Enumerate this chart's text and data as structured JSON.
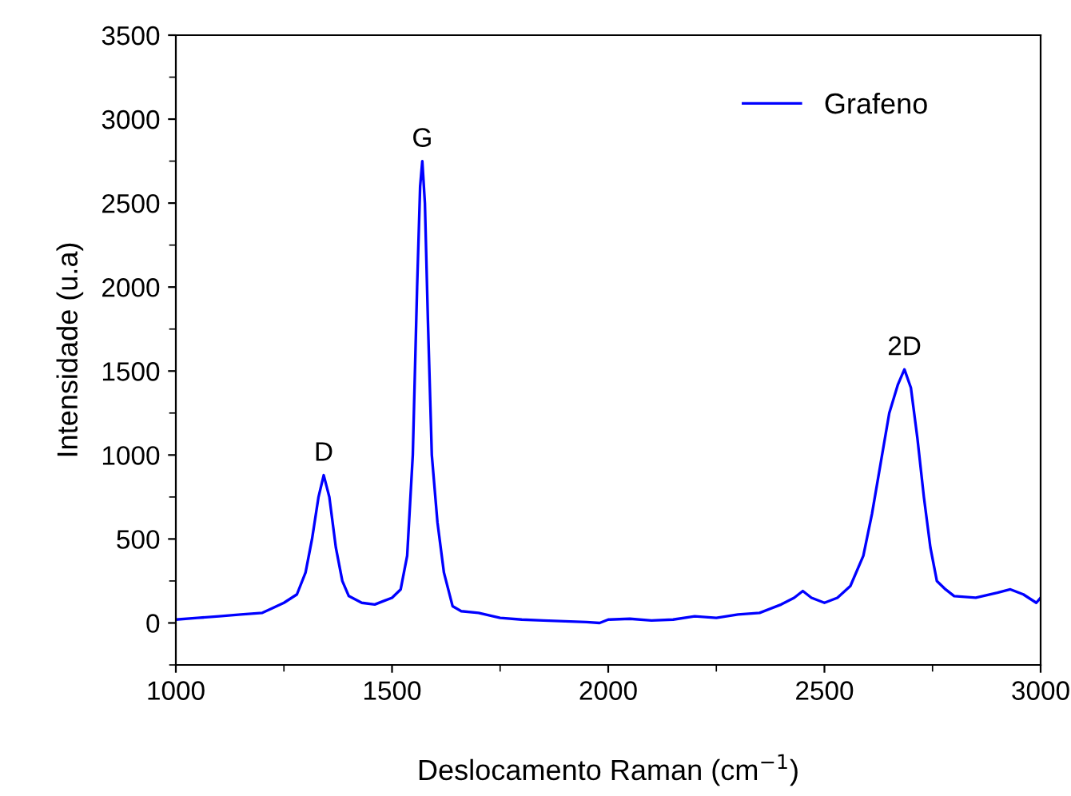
{
  "chart_data": {
    "type": "line",
    "xlabel": "Deslocamento Raman (cm$^{−1}$)",
    "ylabel": "Intensidade (u.a)",
    "xlim": [
      1000,
      3000
    ],
    "xticks": [
      1000,
      1500,
      2000,
      2500,
      3000
    ],
    "ylim": [
      -250,
      3500
    ],
    "yticks": [
      0,
      500,
      1000,
      1500,
      2000,
      2500,
      3000,
      3500
    ],
    "grid": false,
    "legend": "top right",
    "marker": "none",
    "line_style": "solid",
    "annotations": [
      {
        "text": "D",
        "x": 1342,
        "y": 880
      },
      {
        "text": "G",
        "x": 1570,
        "y": 2750
      },
      {
        "text": "2D",
        "x": 2685,
        "y": 1510
      }
    ],
    "series": [
      {
        "name": "Grafeno",
        "color": "#0000ff",
        "x": [
          1000,
          1050,
          1100,
          1150,
          1200,
          1250,
          1280,
          1300,
          1315,
          1330,
          1342,
          1355,
          1370,
          1385,
          1400,
          1430,
          1460,
          1480,
          1500,
          1520,
          1535,
          1548,
          1558,
          1565,
          1570,
          1576,
          1583,
          1592,
          1605,
          1620,
          1640,
          1660,
          1700,
          1750,
          1800,
          1850,
          1900,
          1950,
          1980,
          2000,
          2050,
          2100,
          2150,
          2200,
          2250,
          2300,
          2350,
          2400,
          2430,
          2450,
          2470,
          2500,
          2530,
          2560,
          2590,
          2610,
          2630,
          2650,
          2670,
          2685,
          2700,
          2715,
          2730,
          2745,
          2760,
          2780,
          2800,
          2850,
          2900,
          2930,
          2960,
          2990,
          3000
        ],
        "values": [
          20,
          30,
          40,
          50,
          60,
          120,
          170,
          300,
          500,
          750,
          880,
          750,
          450,
          250,
          160,
          120,
          110,
          130,
          150,
          200,
          400,
          1000,
          2000,
          2600,
          2750,
          2500,
          1800,
          1000,
          600,
          300,
          100,
          70,
          60,
          30,
          20,
          15,
          10,
          5,
          0,
          20,
          25,
          15,
          20,
          40,
          30,
          50,
          60,
          110,
          150,
          190,
          150,
          120,
          150,
          220,
          400,
          650,
          950,
          1250,
          1420,
          1510,
          1400,
          1100,
          750,
          450,
          250,
          200,
          160,
          150,
          180,
          200,
          170,
          120,
          150
        ]
      }
    ]
  }
}
